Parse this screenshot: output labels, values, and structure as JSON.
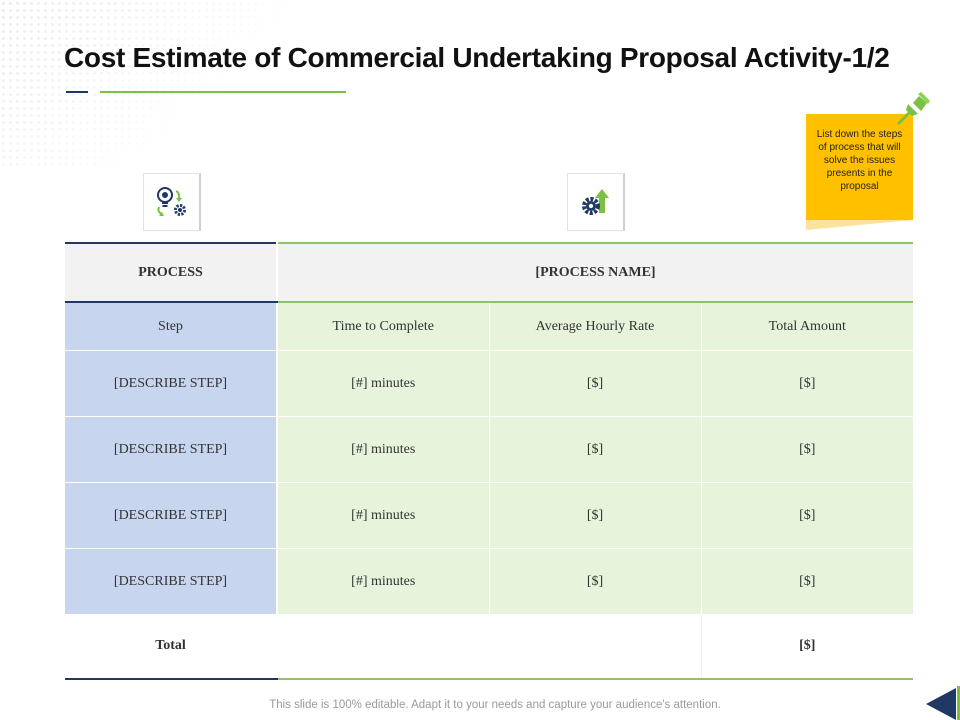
{
  "title": "Cost Estimate of Commercial Undertaking Proposal Activity-1/2",
  "note": {
    "text": "List down the steps of process that will solve the issues presents in the proposal"
  },
  "icons": {
    "left": "lightbulb-gears-icon",
    "right": "gear-growth-arrow-icon",
    "pin": "pushpin-icon"
  },
  "table": {
    "header": {
      "process_label": "PROCESS",
      "process_name": "[PROCESS NAME]"
    },
    "columns": [
      "Step",
      "Time to Complete",
      "Average Hourly Rate",
      "Total Amount"
    ],
    "rows": [
      {
        "step": "[DESCRIBE STEP]",
        "time": "[#] minutes",
        "rate": "[$]",
        "total": "[$]"
      },
      {
        "step": "[DESCRIBE STEP]",
        "time": "[#] minutes",
        "rate": "[$]",
        "total": "[$]"
      },
      {
        "step": "[DESCRIBE STEP]",
        "time": "[#] minutes",
        "rate": "[$]",
        "total": "[$]"
      },
      {
        "step": "[DESCRIBE STEP]",
        "time": "[#] minutes",
        "rate": "[$]",
        "total": "[$]"
      }
    ],
    "total": {
      "label": "Total",
      "amount": "[$]"
    }
  },
  "footer": "This slide is 100% editable. Adapt it to your needs and capture your audience's attention.",
  "colors": {
    "navy": "#1f3864",
    "green": "#7ac143",
    "step_column": "#c8d5ef",
    "value_columns": "#e8f3dc",
    "note": "#ffc000"
  }
}
